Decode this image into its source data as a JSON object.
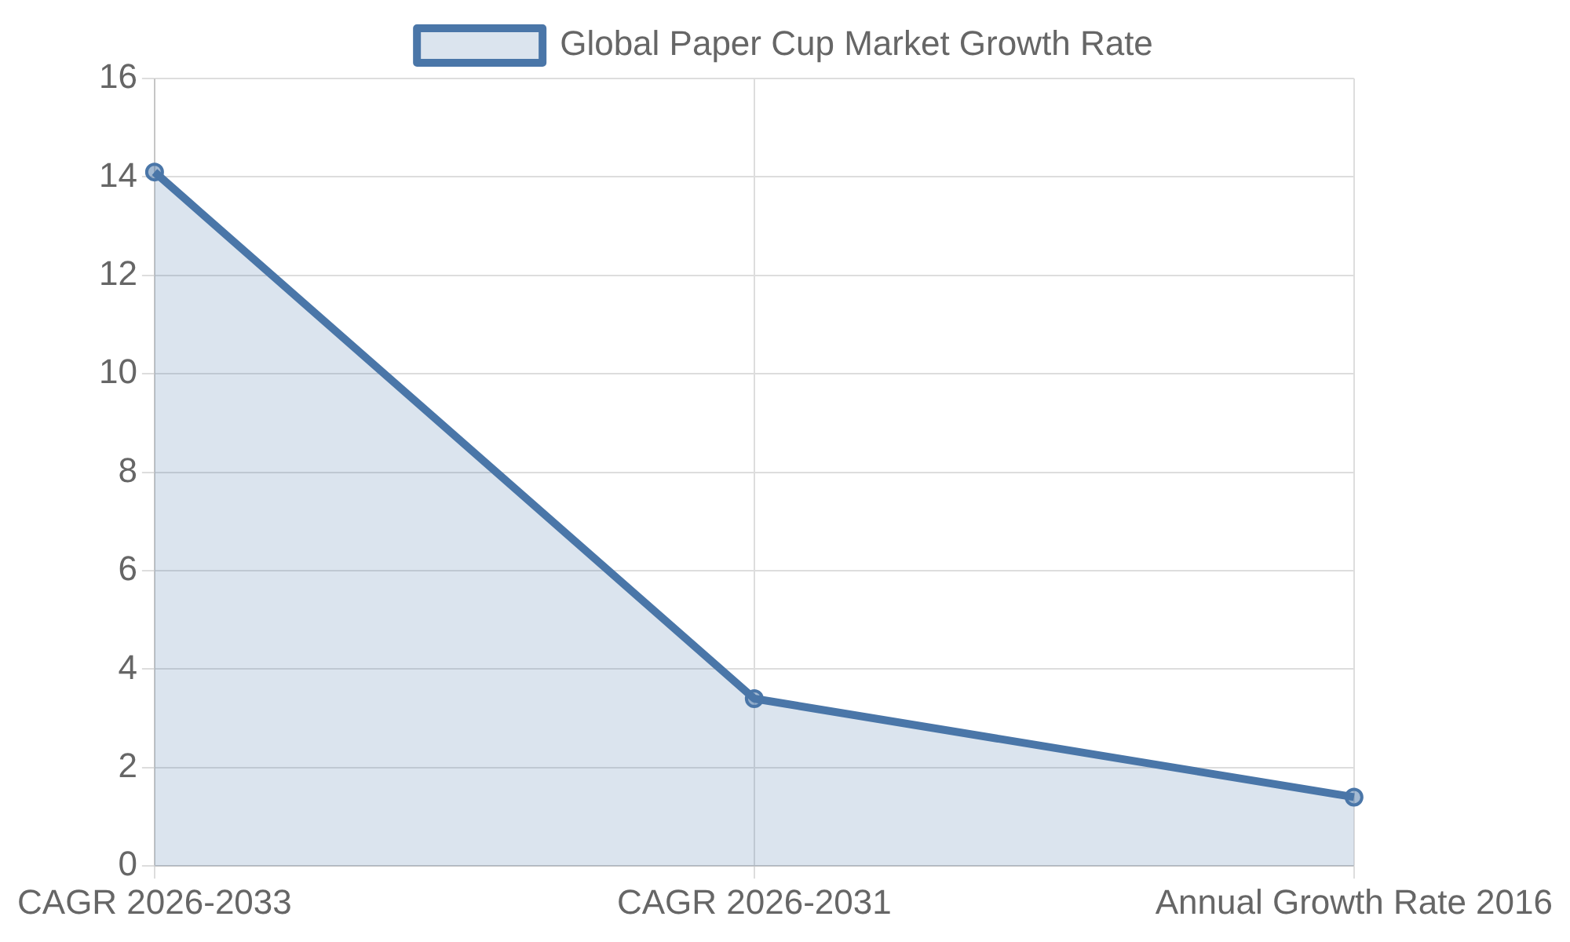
{
  "chart_data": {
    "type": "area",
    "categories": [
      "CAGR 2026-2033",
      "CAGR 2026-2031",
      "Annual Growth Rate 2016"
    ],
    "series": [
      {
        "name": "Global Paper Cup Market Growth Rate",
        "color": "#4a76a8",
        "values": [
          14.1,
          3.4,
          1.4
        ]
      }
    ],
    "ylim": [
      0,
      16
    ],
    "yticks": [
      0,
      2,
      4,
      6,
      8,
      10,
      12,
      14,
      16
    ],
    "grid": true,
    "legend": "top",
    "marker": "circle"
  }
}
